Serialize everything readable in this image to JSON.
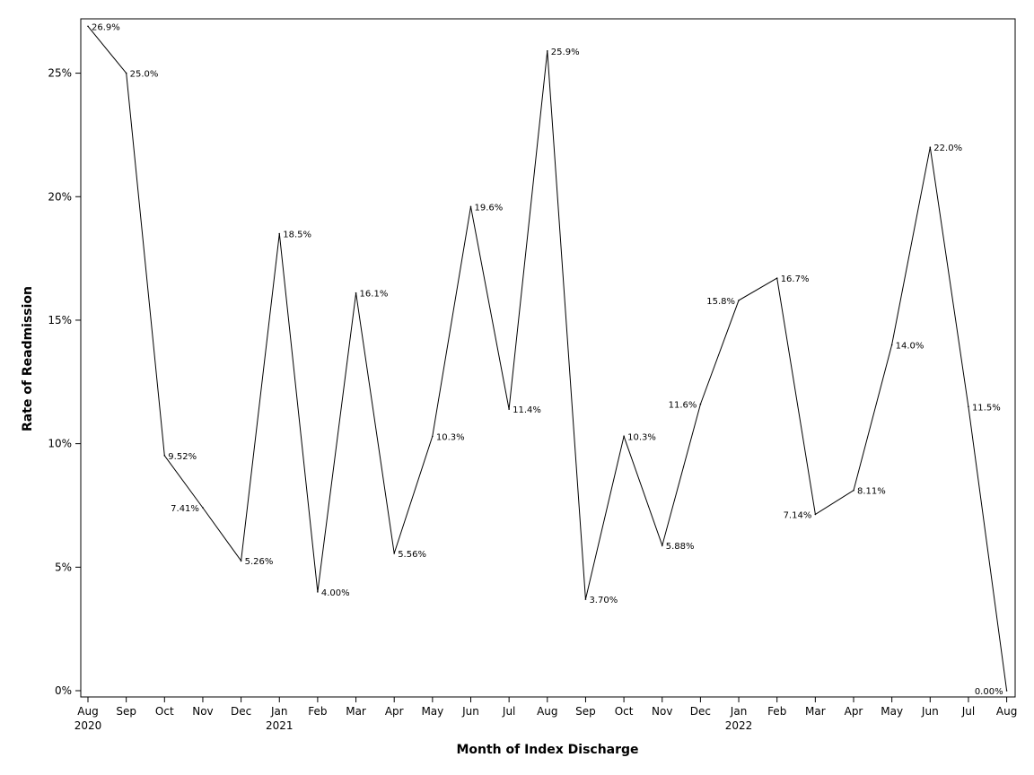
{
  "chart_data": {
    "type": "line",
    "title": "",
    "xlabel": "Month of Index Discharge",
    "ylabel": "Rate of Readmission",
    "ylim": [
      0,
      27.2
    ],
    "yticks": [
      {
        "value": 0,
        "label": "0%"
      },
      {
        "value": 5,
        "label": "5%"
      },
      {
        "value": 10,
        "label": "10%"
      },
      {
        "value": 15,
        "label": "15%"
      },
      {
        "value": 20,
        "label": "20%"
      },
      {
        "value": 25,
        "label": "25%"
      }
    ],
    "grid": false,
    "colors": {
      "line": "#000000",
      "axis": "#000000"
    },
    "categories": [
      {
        "month": "Aug",
        "year": "2020"
      },
      {
        "month": "Sep",
        "year": ""
      },
      {
        "month": "Oct",
        "year": ""
      },
      {
        "month": "Nov",
        "year": ""
      },
      {
        "month": "Dec",
        "year": ""
      },
      {
        "month": "Jan",
        "year": "2021"
      },
      {
        "month": "Feb",
        "year": ""
      },
      {
        "month": "Mar",
        "year": ""
      },
      {
        "month": "Apr",
        "year": ""
      },
      {
        "month": "May",
        "year": ""
      },
      {
        "month": "Jun",
        "year": ""
      },
      {
        "month": "Jul",
        "year": ""
      },
      {
        "month": "Aug",
        "year": ""
      },
      {
        "month": "Sep",
        "year": ""
      },
      {
        "month": "Oct",
        "year": ""
      },
      {
        "month": "Nov",
        "year": ""
      },
      {
        "month": "Dec",
        "year": ""
      },
      {
        "month": "Jan",
        "year": "2022"
      },
      {
        "month": "Feb",
        "year": ""
      },
      {
        "month": "Mar",
        "year": ""
      },
      {
        "month": "Apr",
        "year": ""
      },
      {
        "month": "May",
        "year": ""
      },
      {
        "month": "Jun",
        "year": ""
      },
      {
        "month": "Jul",
        "year": ""
      },
      {
        "month": "Aug",
        "year": ""
      }
    ],
    "series": [
      {
        "name": "Rate of Readmission",
        "values": [
          26.9,
          25.0,
          9.52,
          7.41,
          5.26,
          18.5,
          4.0,
          16.1,
          5.56,
          10.3,
          19.6,
          11.4,
          25.9,
          3.7,
          10.3,
          5.88,
          11.6,
          15.8,
          16.7,
          7.14,
          8.11,
          14.0,
          22.0,
          11.5,
          0.0
        ],
        "labels": [
          "26.9%",
          "25.0%",
          "9.52%",
          "7.41%",
          "5.26%",
          "18.5%",
          "4.00%",
          "16.1%",
          "5.56%",
          "10.3%",
          "19.6%",
          "11.4%",
          "25.9%",
          "3.70%",
          "10.3%",
          "5.88%",
          "11.6%",
          "15.8%",
          "16.7%",
          "7.14%",
          "8.11%",
          "14.0%",
          "22.0%",
          "11.5%",
          "0.00%"
        ],
        "label_side": [
          "right",
          "right",
          "right",
          "left",
          "right",
          "right",
          "right",
          "right",
          "right",
          "right",
          "right",
          "right",
          "right",
          "right",
          "right",
          "right",
          "left",
          "left",
          "right",
          "left",
          "right",
          "right",
          "right",
          "right",
          "left"
        ]
      }
    ]
  }
}
